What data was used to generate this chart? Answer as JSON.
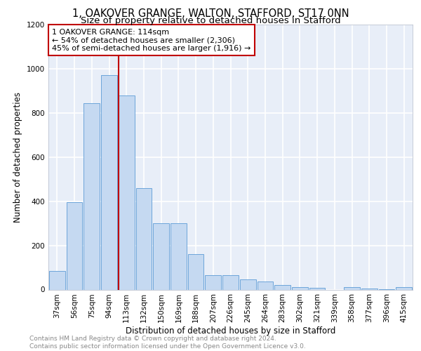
{
  "title1": "1, OAKOVER GRANGE, WALTON, STAFFORD, ST17 0NN",
  "title2": "Size of property relative to detached houses in Stafford",
  "xlabel": "Distribution of detached houses by size in Stafford",
  "ylabel": "Number of detached properties",
  "categories": [
    "37sqm",
    "56sqm",
    "75sqm",
    "94sqm",
    "113sqm",
    "132sqm",
    "150sqm",
    "169sqm",
    "188sqm",
    "207sqm",
    "226sqm",
    "245sqm",
    "264sqm",
    "283sqm",
    "302sqm",
    "321sqm",
    "339sqm",
    "358sqm",
    "377sqm",
    "396sqm",
    "415sqm"
  ],
  "values": [
    85,
    395,
    845,
    970,
    880,
    460,
    300,
    300,
    160,
    65,
    65,
    45,
    35,
    22,
    10,
    8,
    0,
    10,
    5,
    3,
    10
  ],
  "bar_color": "#c5d9f1",
  "bar_edgecolor": "#5b9bd5",
  "vline_index": 4,
  "vline_color": "#c00000",
  "box_edgecolor": "#c00000",
  "annotation_title": "1 OAKOVER GRANGE: 114sqm",
  "annotation_line1": "← 54% of detached houses are smaller (2,306)",
  "annotation_line2": "45% of semi-detached houses are larger (1,916) →",
  "ylim": [
    0,
    1200
  ],
  "yticks": [
    0,
    200,
    400,
    600,
    800,
    1000,
    1200
  ],
  "background_color": "#e8eef8",
  "grid_color": "#ffffff",
  "footer_line1": "Contains HM Land Registry data © Crown copyright and database right 2024.",
  "footer_line2": "Contains public sector information licensed under the Open Government Licence v3.0.",
  "title1_fontsize": 10.5,
  "title2_fontsize": 9.5,
  "xlabel_fontsize": 8.5,
  "ylabel_fontsize": 8.5,
  "tick_fontsize": 7.5,
  "annotation_fontsize": 8,
  "footer_fontsize": 6.5
}
